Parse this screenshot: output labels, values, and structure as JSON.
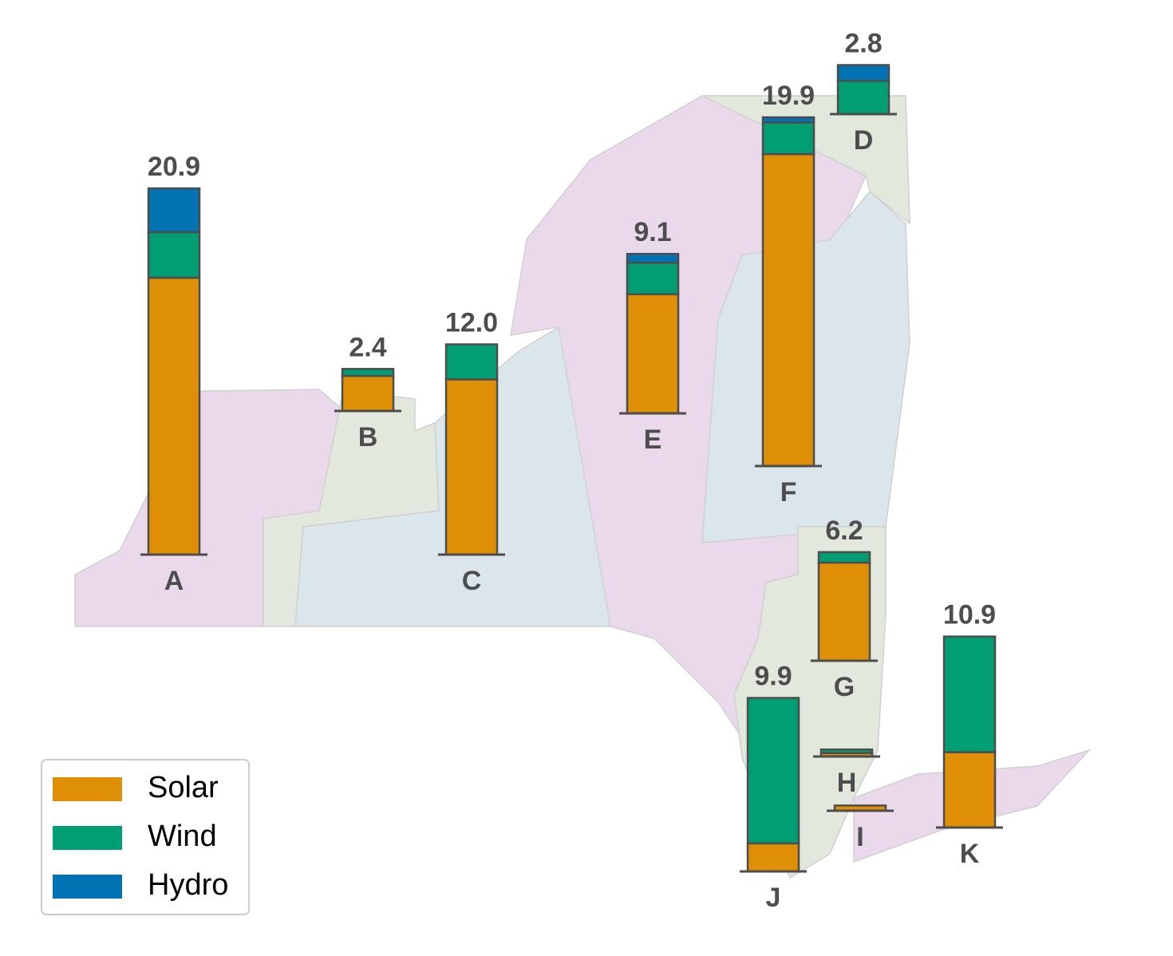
{
  "chart_data": {
    "type": "stacked-bar-map",
    "categories": [
      "A",
      "B",
      "C",
      "D",
      "E",
      "F",
      "G",
      "H",
      "I",
      "J",
      "K"
    ],
    "series": [
      {
        "name": "Solar",
        "color": "#de8f05",
        "values": [
          15.8,
          2.0,
          10.0,
          0,
          6.8,
          17.8,
          5.6,
          0.2,
          0.3,
          1.6,
          4.3
        ]
      },
      {
        "name": "Wind",
        "color": "#029e73",
        "values": [
          2.6,
          0.4,
          2.0,
          1.9,
          1.8,
          1.8,
          0.6,
          0.2,
          0,
          8.3,
          6.6
        ]
      },
      {
        "name": "Hydro",
        "color": "#0173b2",
        "values": [
          2.5,
          0,
          0,
          0.9,
          0.5,
          0.3,
          0,
          0,
          0,
          0,
          0
        ]
      }
    ],
    "totals": [
      20.9,
      2.4,
      12.0,
      2.8,
      9.1,
      19.9,
      6.2,
      null,
      null,
      9.9,
      10.9
    ],
    "total_labels": [
      "20.9",
      "2.4",
      "12.0",
      "2.8",
      "9.1",
      "19.9",
      "6.2",
      null,
      null,
      "9.9",
      "10.9"
    ],
    "legend": "lower left"
  }
}
